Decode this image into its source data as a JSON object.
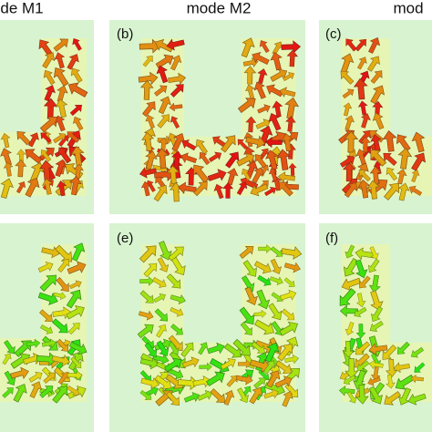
{
  "header": {
    "titles": [
      "de M1",
      "mode M2",
      "mod"
    ]
  },
  "panels": [
    {
      "label": "(b)"
    },
    {
      "label": "(c)"
    },
    {
      "label": "(e)"
    },
    {
      "label": "(f)"
    }
  ]
}
